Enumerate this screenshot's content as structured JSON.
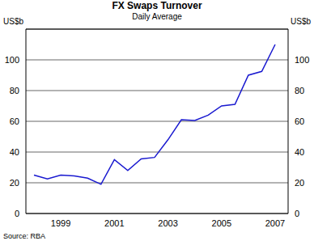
{
  "chart_data": {
    "type": "line",
    "title": "FX Swaps Turnover",
    "subtitle": "Daily Average",
    "y_label": "US$b",
    "y2_label": "US$b",
    "source": "Source: RBA",
    "categories": [
      null,
      null,
      "1999",
      null,
      null,
      null,
      "2001",
      null,
      null,
      null,
      "2003",
      null,
      null,
      null,
      "2005",
      null,
      null,
      null,
      "2007"
    ],
    "values": [
      25,
      22.5,
      25,
      24.5,
      23,
      19,
      35,
      28,
      35.5,
      36.5,
      48,
      61,
      60.5,
      64,
      70,
      71,
      90,
      92.5,
      110
    ],
    "color": "#1a1ad0",
    "ylim": [
      0,
      120
    ],
    "yticks": [
      0,
      20,
      40,
      60,
      80,
      100
    ],
    "y2lim": [
      0,
      120
    ],
    "y2ticks": [
      0,
      20,
      40,
      60,
      80,
      100
    ],
    "grid": true
  }
}
